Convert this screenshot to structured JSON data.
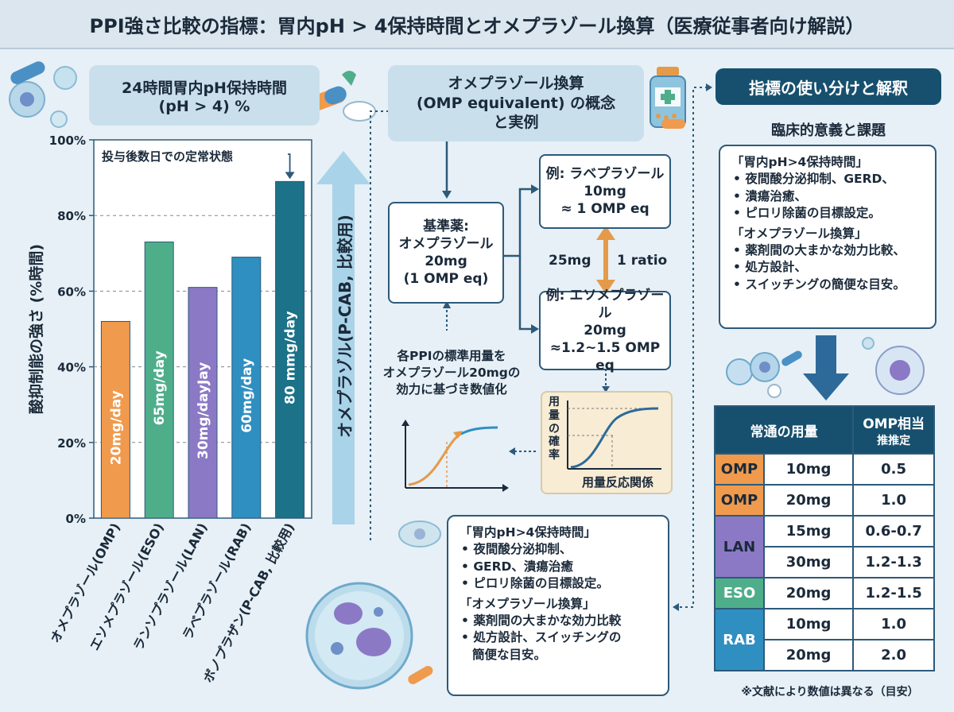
{
  "title": "PPI強さ比較の指標：胃内pH > 4保持時間とオメプラゾール換算（医療従事者向け解説）",
  "left_panel": {
    "header_line1": "24時間胃内pH保持時間",
    "header_line2": "(pH > 4) %",
    "annotation": "投与後数日での定常状態",
    "arrow_label": "オメプラゾル(P-CAB, 比較用)"
  },
  "chart_data": {
    "type": "bar",
    "ylabel": "酸抑制能の強さ (%時間)",
    "ylim": [
      0,
      100
    ],
    "yticks": [
      "0%",
      "20%",
      "40%",
      "60%",
      "80%",
      "100%"
    ],
    "categories": [
      "オメプラゾール(OMP)",
      "エソメプラゾール(ESO)",
      "ランソプラゾール(LAN)",
      "ラベプラゾール(RAB)",
      "ボノプラザン(P-CAB, 比較用)"
    ],
    "values": [
      52,
      73,
      61,
      69,
      89
    ],
    "bar_labels": [
      "20mg/day",
      "65mg/day",
      "30mg/dayJay",
      "60mg/day",
      "80 mmg/day"
    ],
    "colors": [
      "#ef9a4d",
      "#4fae8a",
      "#8b79c5",
      "#2f8fc1",
      "#1c7288"
    ],
    "grid": true
  },
  "middle_panel": {
    "header_line1": "オメプラゾール換算",
    "header_line2": "(OMP equivalent) の概念",
    "header_line3": "と実例",
    "base_box": [
      "基準薬:",
      "オメプラゾール",
      "20mg",
      "(1 OMP eq)"
    ],
    "rab_box": [
      "例: ラベプラゾール",
      "10mg",
      "≈ 1 OMP eq"
    ],
    "ratio_left": "25mg",
    "ratio_right": "1 ratio",
    "eso_box": [
      "例: エソメプラゾール",
      "20mg",
      "≈1.2~1.5 OMP eq"
    ],
    "explain": [
      "各PPIの標準用量を",
      "オメプラゾール20mgの",
      "効力に基づき数値化"
    ],
    "dose_ylabel": [
      "用",
      "量",
      "の",
      "確",
      "率"
    ],
    "dose_xlabel": "用量反応関係",
    "bottom_note": {
      "h1": "「胃内pH>4保持時間」",
      "items1": [
        "夜間酸分泌抑制、",
        "GERD、潰瘍治癒",
        "ピロリ除菌の目標設定。"
      ],
      "h2": "「オメプラゾール換算」",
      "items2": [
        "薬剤間の大まかな効力比較",
        "処方設計、スイッチングの"
      ],
      "tail": "簡便な目安。"
    }
  },
  "right_panel": {
    "header": "指標の使い分けと解釈",
    "subheader": "臨床的意義と課題",
    "note": {
      "h1": "「胃内pH>4保持時間」",
      "items1": [
        "夜間酸分泌抑制、GERD、",
        "潰瘍治癒、",
        "ピロリ除菌の目標設定。"
      ],
      "h2": "「オメプラゾール換算」",
      "items2": [
        "薬剤間の大まかな効力比較、",
        "処方設計、",
        "スイッチングの簡便な目安。"
      ]
    },
    "table": {
      "col1": "常通の用量",
      "col2_line1": "OMP相当",
      "col2_line2": "推推定",
      "rows": [
        {
          "drug": "OMP",
          "dose": "10mg",
          "eq": "0.5"
        },
        {
          "drug": "OMP",
          "dose": "20mg",
          "eq": "1.0"
        },
        {
          "drug": "LAN",
          "dose": "15mg",
          "eq": "0.6-0.7"
        },
        {
          "drug": "",
          "dose": "30mg",
          "eq": "1.2-1.3"
        },
        {
          "drug": "ESO",
          "dose": "20mg",
          "eq": "1.2-1.5"
        },
        {
          "drug": "RAB",
          "dose": "10mg",
          "eq": "1.0"
        },
        {
          "drug": "",
          "dose": "20mg",
          "eq": "2.0"
        }
      ]
    },
    "footnote": "※文献により数値は異なる（目安）"
  }
}
